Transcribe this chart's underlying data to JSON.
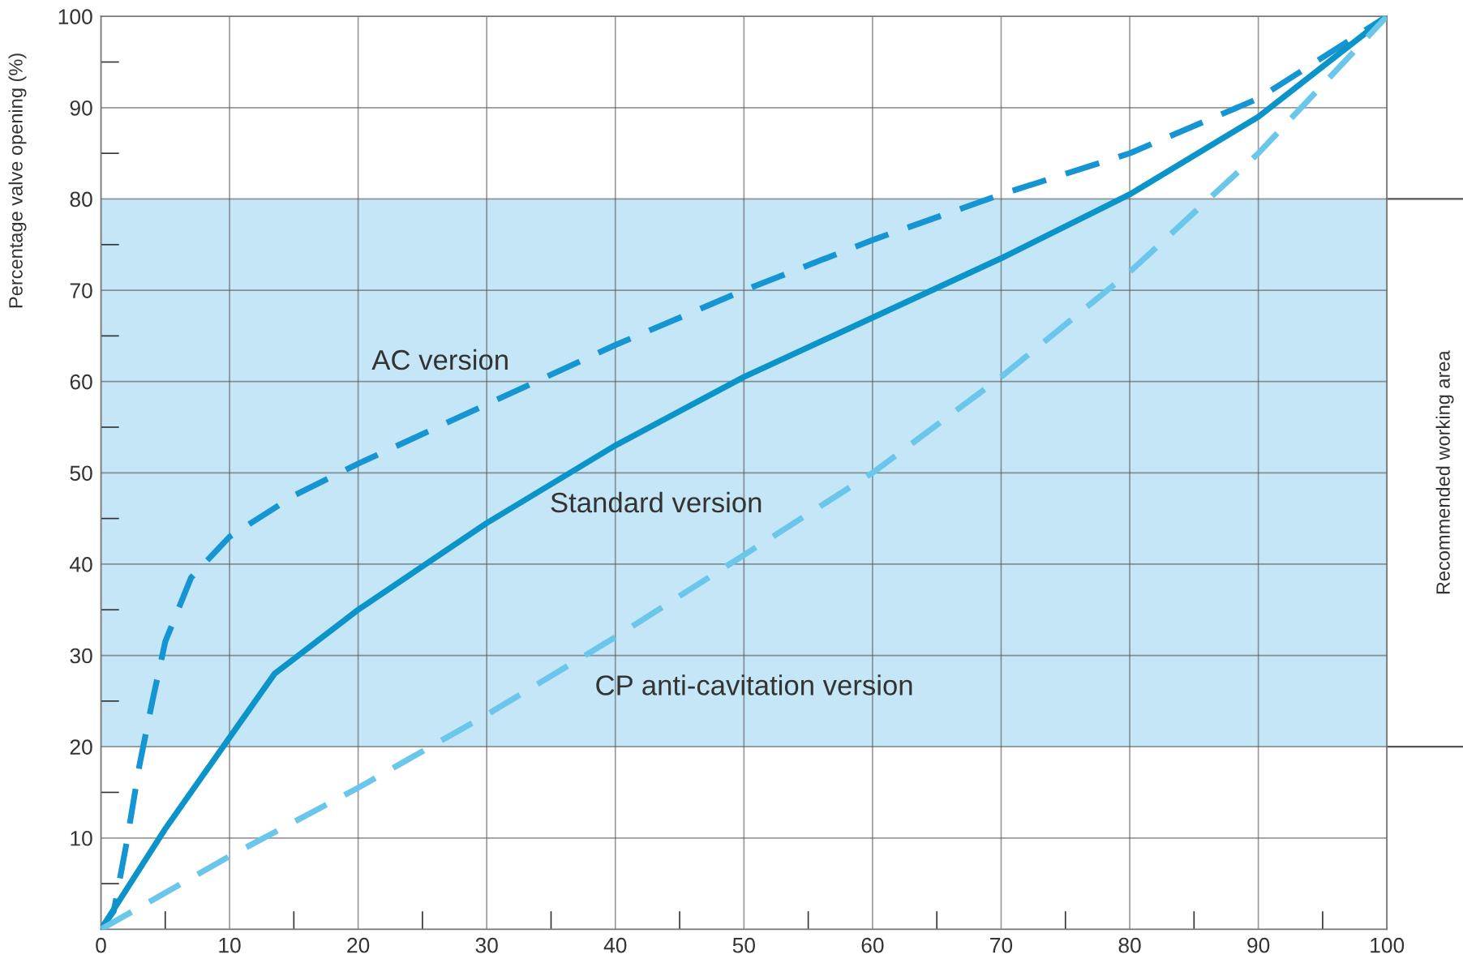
{
  "chart_data": {
    "type": "line",
    "ylabel": "Percentage valve opening (%)",
    "xlim": [
      0,
      100
    ],
    "ylim": [
      0,
      100
    ],
    "xticks": [
      0,
      {
        "value": 5,
        "label": null
      },
      10,
      {
        "value": 15,
        "label": null
      },
      20,
      {
        "value": 25,
        "label": null
      },
      30,
      {
        "value": 35,
        "label": null
      },
      40,
      {
        "value": 45,
        "label": null
      },
      50,
      {
        "value": 55,
        "label": null
      },
      60,
      {
        "value": 65,
        "label": null
      },
      70,
      {
        "value": 75,
        "label": null
      },
      80,
      {
        "value": 85,
        "label": null
      },
      90,
      {
        "value": 95,
        "label": null
      },
      100
    ],
    "yticks": [
      {
        "value": 5,
        "label": null
      },
      10,
      {
        "value": 15,
        "label": null
      },
      20,
      {
        "value": 25,
        "label": null
      },
      30,
      {
        "value": 35,
        "label": null
      },
      40,
      {
        "value": 45,
        "label": null
      },
      50,
      {
        "value": 55,
        "label": null
      },
      60,
      {
        "value": 65,
        "label": null
      },
      70,
      {
        "value": 75,
        "label": null
      },
      80,
      {
        "value": 85,
        "label": null
      },
      90,
      {
        "value": 95,
        "label": null
      },
      100
    ],
    "grid": true,
    "legend": false,
    "marker": "none",
    "bands": [
      {
        "axis": "y",
        "from": 20,
        "to": 80,
        "label": "Recommended working area",
        "color": "#c4e6f7"
      }
    ],
    "series": [
      {
        "name": "AC version",
        "color": "#1595d3",
        "line_style": "dashed",
        "x": [
          0,
          1,
          2,
          3,
          4,
          5,
          7,
          9,
          10,
          15,
          20,
          30,
          40,
          50,
          60,
          70,
          80,
          90,
          100
        ],
        "values": [
          0,
          2,
          9.5,
          18,
          25,
          31.5,
          38.5,
          41.5,
          43,
          47.5,
          51,
          57.5,
          64,
          70,
          75.5,
          80.5,
          85,
          91,
          100
        ]
      },
      {
        "name": "Standard version",
        "color": "#0a94c9",
        "line_style": "solid",
        "x": [
          0,
          5,
          10,
          13.5,
          20,
          30,
          40,
          50,
          60,
          70,
          80,
          90,
          100
        ],
        "values": [
          0,
          11,
          21,
          28,
          35,
          44.5,
          53,
          60.5,
          67,
          73.5,
          80.5,
          89,
          100
        ]
      },
      {
        "name": "CP anti-cavitation version",
        "color": "#6ac6ea",
        "line_style": "dashed",
        "x": [
          0,
          10,
          20,
          25,
          30,
          40,
          50,
          60,
          70,
          80,
          90,
          100
        ],
        "values": [
          0,
          8,
          15.5,
          19.5,
          23.5,
          32,
          41,
          50,
          60.5,
          72,
          85,
          100
        ]
      }
    ]
  }
}
